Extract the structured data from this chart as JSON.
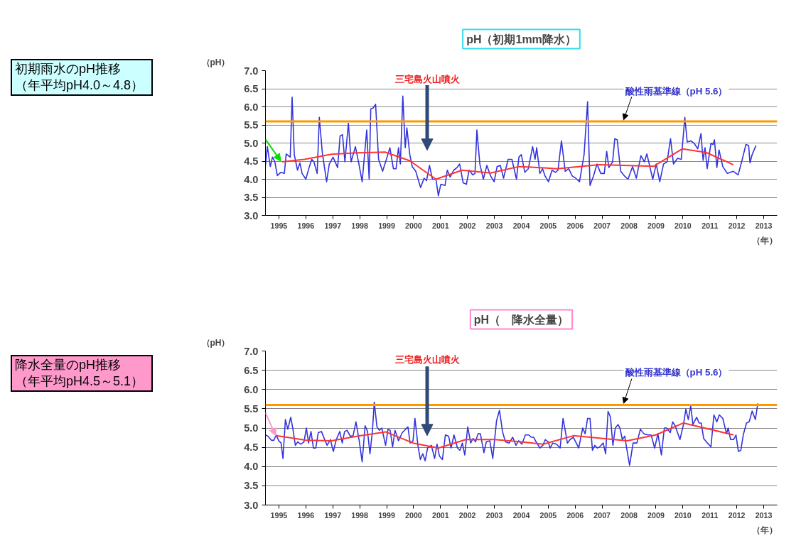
{
  "chart_data": [
    {
      "type": "line",
      "title": "pH（初期1mm降水）",
      "ylabel": "（pH）",
      "xlabel": "（年）",
      "xlim": [
        1995,
        2014
      ],
      "ylim": [
        3,
        7
      ],
      "yticks": [
        {
          "value": 3,
          "label": "3.0"
        },
        {
          "value": 3.5,
          "label": "3.5"
        },
        {
          "value": 4,
          "label": "4.0"
        },
        {
          "value": 4.5,
          "label": "4.5"
        },
        {
          "value": 5,
          "label": "5.0"
        },
        {
          "value": 5.5,
          "label": "5.5"
        },
        {
          "value": 6,
          "label": "6.0"
        },
        {
          "value": 6.5,
          "label": "6.5"
        },
        {
          "value": 7,
          "label": "7.0"
        }
      ],
      "xticks": [
        {
          "value": 1995.5,
          "label": "1995"
        },
        {
          "value": 1996.5,
          "label": "1996"
        },
        {
          "value": 1997.5,
          "label": "1997"
        },
        {
          "value": 1998.5,
          "label": "1998"
        },
        {
          "value": 1999.5,
          "label": "1999"
        },
        {
          "value": 2000.5,
          "label": "2000"
        },
        {
          "value": 2001.5,
          "label": "2001"
        },
        {
          "value": 2002.5,
          "label": "2002"
        },
        {
          "value": 2003.5,
          "label": "2003"
        },
        {
          "value": 2004.5,
          "label": "2004"
        },
        {
          "value": 2005.5,
          "label": "2005"
        },
        {
          "value": 2006.5,
          "label": "2006"
        },
        {
          "value": 2007.5,
          "label": "2007"
        },
        {
          "value": 2008.5,
          "label": "2008"
        },
        {
          "value": 2009.5,
          "label": "2009"
        },
        {
          "value": 2010.5,
          "label": "2010"
        },
        {
          "value": 2011.5,
          "label": "2011"
        },
        {
          "value": 2012.5,
          "label": "2012"
        },
        {
          "value": 2013.5,
          "label": "2013"
        }
      ],
      "grid": "y",
      "marker": "none",
      "line_style": "solid",
      "ref_lines": [
        {
          "axis": "y",
          "value": 5.6,
          "label": "酸性雨基準線（pH 5.6）",
          "color": "#ff9900"
        }
      ],
      "annotations": [
        "三宅島火山噴火",
        "初期雨水のpH推移（年平均pH4.0～4.8）"
      ],
      "series": [
        {
          "color": "#3333dd",
          "x": [
            1995.0,
            1995.07,
            1995.18,
            1995.26,
            1995.35,
            1995.44,
            1995.57,
            1995.7,
            1995.77,
            1995.92,
            1995.99,
            1996.07,
            1996.19,
            1996.28,
            1996.36,
            1996.5,
            1996.63,
            1996.72,
            1996.8,
            1996.92,
            1997.0,
            1997.11,
            1997.27,
            1997.37,
            1997.51,
            1997.68,
            1997.77,
            1997.86,
            1997.95,
            1998.08,
            1998.18,
            1998.34,
            1998.47,
            1998.59,
            1998.76,
            1998.85,
            1998.91,
            1999.0,
            1999.09,
            1999.2,
            1999.35,
            1999.49,
            1999.62,
            1999.75,
            1999.85,
            1999.94,
            2000.01,
            2000.1,
            2000.19,
            2000.25,
            2000.36,
            2000.45,
            2000.58,
            2000.76,
            2000.89,
            2000.98,
            2001.09,
            2001.2,
            2001.33,
            2001.42,
            2001.51,
            2001.67,
            2001.75,
            2001.86,
            2001.99,
            2002.11,
            2002.21,
            2002.34,
            2002.46,
            2002.56,
            2002.7,
            2002.78,
            2002.85,
            2002.96,
            2003.09,
            2003.22,
            2003.36,
            2003.49,
            2003.6,
            2003.72,
            2003.84,
            2004.01,
            2004.15,
            2004.32,
            2004.41,
            2004.5,
            2004.63,
            2004.76,
            2004.92,
            2005.01,
            2005.07,
            2005.19,
            2005.29,
            2005.38,
            2005.51,
            2005.64,
            2005.77,
            2005.86,
            2005.99,
            2006.13,
            2006.26,
            2006.39,
            2006.52,
            2006.66,
            2006.83,
            2006.96,
            2007.05,
            2007.18,
            2007.31,
            2007.45,
            2007.58,
            2007.67,
            2007.75,
            2007.89,
            2007.97,
            2008.06,
            2008.19,
            2008.33,
            2008.46,
            2008.63,
            2008.77,
            2008.94,
            2009.07,
            2009.16,
            2009.25,
            2009.38,
            2009.51,
            2009.64,
            2009.78,
            2009.91,
            2010.04,
            2010.15,
            2010.3,
            2010.44,
            2010.57,
            2010.66,
            2010.79,
            2010.92,
            2011.05,
            2011.17,
            2011.25,
            2011.32,
            2011.4,
            2011.54,
            2011.62,
            2011.67,
            2011.76,
            2011.84,
            2011.98,
            2012.15,
            2012.37,
            2012.55,
            2012.68,
            2012.84,
            2012.94,
            2012.99,
            2013.07,
            2013.21
          ],
          "values": [
            4.38,
            4.9,
            4.35,
            4.61,
            4.48,
            4.1,
            4.19,
            4.16,
            4.7,
            4.61,
            6.27,
            4.68,
            4.25,
            4.45,
            4.16,
            4.0,
            4.35,
            4.55,
            4.48,
            4.16,
            5.71,
            4.74,
            3.93,
            4.42,
            4.61,
            4.32,
            5.19,
            5.23,
            4.48,
            5.55,
            4.48,
            4.9,
            4.42,
            3.93,
            5.36,
            4.0,
            5.94,
            5.97,
            6.07,
            4.55,
            4.22,
            4.55,
            4.87,
            4.29,
            4.29,
            4.87,
            4.42,
            6.3,
            4.87,
            5.42,
            4.68,
            4.35,
            4.22,
            3.77,
            4.03,
            3.96,
            4.38,
            4.0,
            4.0,
            3.54,
            3.86,
            3.83,
            4.25,
            4.06,
            4.25,
            4.32,
            4.42,
            3.9,
            3.86,
            4.25,
            4.12,
            4.16,
            5.36,
            4.42,
            4.0,
            4.38,
            4.09,
            3.93,
            4.35,
            4.38,
            4.03,
            4.55,
            4.55,
            4.0,
            4.61,
            4.68,
            4.19,
            4.29,
            4.9,
            4.55,
            4.87,
            4.16,
            4.29,
            4.09,
            3.93,
            4.25,
            4.19,
            4.25,
            5.06,
            4.22,
            4.29,
            4.09,
            4.03,
            3.93,
            4.68,
            6.14,
            3.83,
            4.09,
            4.42,
            4.16,
            4.16,
            4.77,
            4.32,
            4.48,
            5.12,
            5.09,
            4.22,
            4.09,
            4.0,
            4.35,
            4.03,
            4.65,
            4.48,
            4.7,
            4.42,
            4.0,
            4.42,
            3.93,
            4.42,
            4.48,
            5.12,
            4.42,
            4.58,
            4.55,
            5.71,
            5.03,
            5.06,
            4.99,
            4.84,
            5.26,
            4.52,
            4.87,
            4.29,
            4.99,
            4.96,
            5.09,
            4.32,
            4.81,
            4.35,
            4.16,
            4.22,
            4.12,
            4.48,
            4.96,
            4.93,
            4.45,
            4.68,
            4.93
          ]
        },
        {
          "color": "#ff3333",
          "x": [
            1995.62,
            1996.45,
            1997.46,
            1998.43,
            1999.44,
            2000.36,
            2001.33,
            2002.3,
            2003.36,
            2004.41,
            2004.76,
            2005.82,
            2007.4,
            2009.42,
            2010.48,
            2011.36,
            2012.37
          ],
          "values": [
            4.48,
            4.55,
            4.69,
            4.73,
            4.75,
            4.51,
            4.0,
            4.25,
            4.17,
            4.35,
            4.34,
            4.29,
            4.4,
            4.36,
            4.84,
            4.74,
            4.4
          ]
        }
      ]
    },
    {
      "type": "line",
      "title": "pH（　降水全量）",
      "ylabel": "（pH）",
      "xlabel": "（年）",
      "xlim": [
        1995,
        2014
      ],
      "ylim": [
        3,
        7
      ],
      "yticks": [
        {
          "value": 3,
          "label": "3.0"
        },
        {
          "value": 3.5,
          "label": "3.5"
        },
        {
          "value": 4,
          "label": "4.0"
        },
        {
          "value": 4.5,
          "label": "4.5"
        },
        {
          "value": 5,
          "label": "5.0"
        },
        {
          "value": 5.5,
          "label": "5.5"
        },
        {
          "value": 6,
          "label": "6.0"
        },
        {
          "value": 6.5,
          "label": "6.5"
        },
        {
          "value": 7,
          "label": "7.0"
        }
      ],
      "xticks": [
        {
          "value": 1995.5,
          "label": "1995"
        },
        {
          "value": 1996.5,
          "label": "1996"
        },
        {
          "value": 1997.5,
          "label": "1997"
        },
        {
          "value": 1998.5,
          "label": "1998"
        },
        {
          "value": 1999.5,
          "label": "1999"
        },
        {
          "value": 2000.5,
          "label": "2000"
        },
        {
          "value": 2001.5,
          "label": "2001"
        },
        {
          "value": 2002.5,
          "label": "2002"
        },
        {
          "value": 2003.5,
          "label": "2003"
        },
        {
          "value": 2004.5,
          "label": "2004"
        },
        {
          "value": 2005.5,
          "label": "2005"
        },
        {
          "value": 2006.5,
          "label": "2006"
        },
        {
          "value": 2007.5,
          "label": "2007"
        },
        {
          "value": 2008.5,
          "label": "2008"
        },
        {
          "value": 2009.5,
          "label": "2009"
        },
        {
          "value": 2010.5,
          "label": "2010"
        },
        {
          "value": 2011.5,
          "label": "2011"
        },
        {
          "value": 2012.5,
          "label": "2012"
        },
        {
          "value": 2013.5,
          "label": "2013"
        }
      ],
      "grid": "y",
      "marker": "none",
      "line_style": "solid",
      "ref_lines": [
        {
          "axis": "y",
          "value": 5.6,
          "label": "酸性雨基準線（pH 5.6）",
          "color": "#ff9900"
        }
      ],
      "annotations": [
        "三宅島火山噴火",
        "降水全量のpH推移（年平均pH4.5～5.1）"
      ],
      "series": [
        {
          "color": "#3333dd",
          "x": [
            1995.0,
            1995.09,
            1995.22,
            1995.31,
            1995.4,
            1995.49,
            1995.58,
            1995.65,
            1995.74,
            1995.83,
            1995.94,
            1996.02,
            1996.11,
            1996.2,
            1996.31,
            1996.43,
            1996.52,
            1996.6,
            1996.69,
            1996.78,
            1996.87,
            1996.96,
            1997.08,
            1997.18,
            1997.29,
            1997.41,
            1997.52,
            1997.63,
            1997.76,
            1997.85,
            1997.94,
            1998.03,
            1998.15,
            1998.25,
            1998.36,
            1998.48,
            1998.59,
            1998.7,
            1998.79,
            1998.88,
            1998.97,
            1999.04,
            1999.14,
            1999.23,
            1999.32,
            1999.46,
            1999.55,
            1999.63,
            1999.72,
            1999.81,
            1999.94,
            2000.08,
            2000.29,
            2000.37,
            2000.48,
            2000.55,
            2000.66,
            2000.75,
            2000.84,
            2000.93,
            2001.02,
            2001.16,
            2001.28,
            2001.37,
            2001.46,
            2001.57,
            2001.68,
            2001.8,
            2001.89,
            2002.0,
            2002.13,
            2002.22,
            2002.31,
            2002.4,
            2002.51,
            2002.62,
            2002.71,
            2002.8,
            2002.89,
            2002.98,
            2003.11,
            2003.2,
            2003.33,
            2003.44,
            2003.58,
            2003.69,
            2003.8,
            2003.91,
            2004.05,
            2004.18,
            2004.3,
            2004.4,
            2004.52,
            2004.65,
            2004.78,
            2004.87,
            2004.96,
            2005.05,
            2005.19,
            2005.3,
            2005.39,
            2005.5,
            2005.57,
            2005.67,
            2005.81,
            2005.94,
            2006.05,
            2006.21,
            2006.31,
            2006.43,
            2006.52,
            2006.63,
            2006.78,
            2006.87,
            2006.96,
            2007.05,
            2007.14,
            2007.23,
            2007.32,
            2007.41,
            2007.54,
            2007.63,
            2007.72,
            2007.81,
            2007.9,
            2007.99,
            2008.09,
            2008.16,
            2008.25,
            2008.34,
            2008.41,
            2008.52,
            2008.65,
            2008.79,
            2008.92,
            2009.05,
            2009.19,
            2009.32,
            2009.45,
            2009.57,
            2009.7,
            2009.81,
            2009.9,
            2010.03,
            2010.12,
            2010.21,
            2010.39,
            2010.52,
            2010.61,
            2010.7,
            2010.79,
            2010.87,
            2011.01,
            2011.1,
            2011.18,
            2011.27,
            2011.41,
            2011.54,
            2011.65,
            2011.76,
            2011.85,
            2011.98,
            2012.12,
            2012.18,
            2012.27,
            2012.38,
            2012.47,
            2012.56,
            2012.65,
            2012.74,
            2012.86,
            2012.96,
            2013.07,
            2013.19,
            2013.28
          ],
          "values": [
            4.82,
            4.79,
            4.68,
            4.68,
            4.82,
            4.67,
            4.61,
            4.21,
            5.22,
            4.97,
            5.28,
            4.97,
            4.55,
            4.64,
            4.58,
            4.64,
            5.0,
            4.61,
            4.91,
            4.48,
            4.48,
            4.88,
            4.91,
            4.73,
            4.55,
            4.7,
            4.39,
            4.7,
            4.91,
            4.61,
            4.91,
            4.94,
            4.79,
            4.79,
            5.16,
            4.67,
            4.12,
            5.06,
            4.91,
            4.33,
            4.91,
            5.67,
            5.03,
            4.94,
            5.0,
            4.55,
            4.97,
            4.94,
            4.51,
            4.94,
            4.67,
            4.88,
            5.03,
            4.61,
            4.67,
            5.25,
            4.55,
            4.18,
            4.33,
            4.15,
            4.48,
            4.55,
            4.21,
            4.58,
            4.27,
            4.18,
            4.82,
            4.79,
            4.48,
            4.82,
            4.48,
            4.42,
            4.61,
            4.3,
            5.03,
            4.61,
            4.73,
            4.64,
            4.85,
            4.85,
            4.36,
            4.64,
            4.67,
            4.21,
            5.19,
            5.46,
            4.91,
            4.64,
            4.61,
            4.76,
            4.55,
            4.67,
            4.58,
            4.82,
            4.82,
            4.76,
            4.76,
            4.64,
            4.48,
            4.55,
            4.7,
            4.64,
            4.48,
            4.61,
            4.58,
            4.48,
            5.25,
            4.61,
            4.7,
            4.76,
            4.64,
            4.48,
            5.0,
            4.85,
            5.25,
            5.25,
            4.42,
            4.55,
            4.48,
            4.51,
            4.61,
            4.33,
            5.43,
            5.28,
            4.55,
            5.0,
            5.09,
            5.0,
            4.7,
            4.79,
            4.48,
            4.03,
            4.61,
            4.61,
            4.97,
            4.85,
            4.82,
            4.82,
            4.48,
            4.85,
            4.3,
            5.0,
            5.0,
            4.88,
            5.16,
            5.06,
            4.7,
            5.09,
            5.49,
            5.22,
            5.58,
            5.09,
            5.28,
            5.13,
            5.13,
            4.73,
            4.61,
            4.51,
            5.34,
            5.16,
            5.34,
            5.25,
            4.85,
            5.0,
            4.7,
            4.7,
            4.82,
            4.39,
            4.42,
            4.82,
            5.13,
            5.16,
            5.44,
            5.22,
            5.64
          ]
        },
        {
          "color": "#ff3333",
          "x": [
            1995.4,
            1996.52,
            1997.45,
            1998.52,
            1999.46,
            2000.48,
            2001.42,
            2002.44,
            2003.51,
            2004.49,
            2005.32,
            2006.43,
            2008.43,
            2009.49,
            2010.52,
            2012.38
          ],
          "values": [
            4.8,
            4.68,
            4.67,
            4.8,
            4.9,
            4.61,
            4.48,
            4.7,
            4.7,
            4.64,
            4.58,
            4.8,
            4.67,
            4.82,
            5.13,
            4.82
          ]
        }
      ]
    }
  ]
}
